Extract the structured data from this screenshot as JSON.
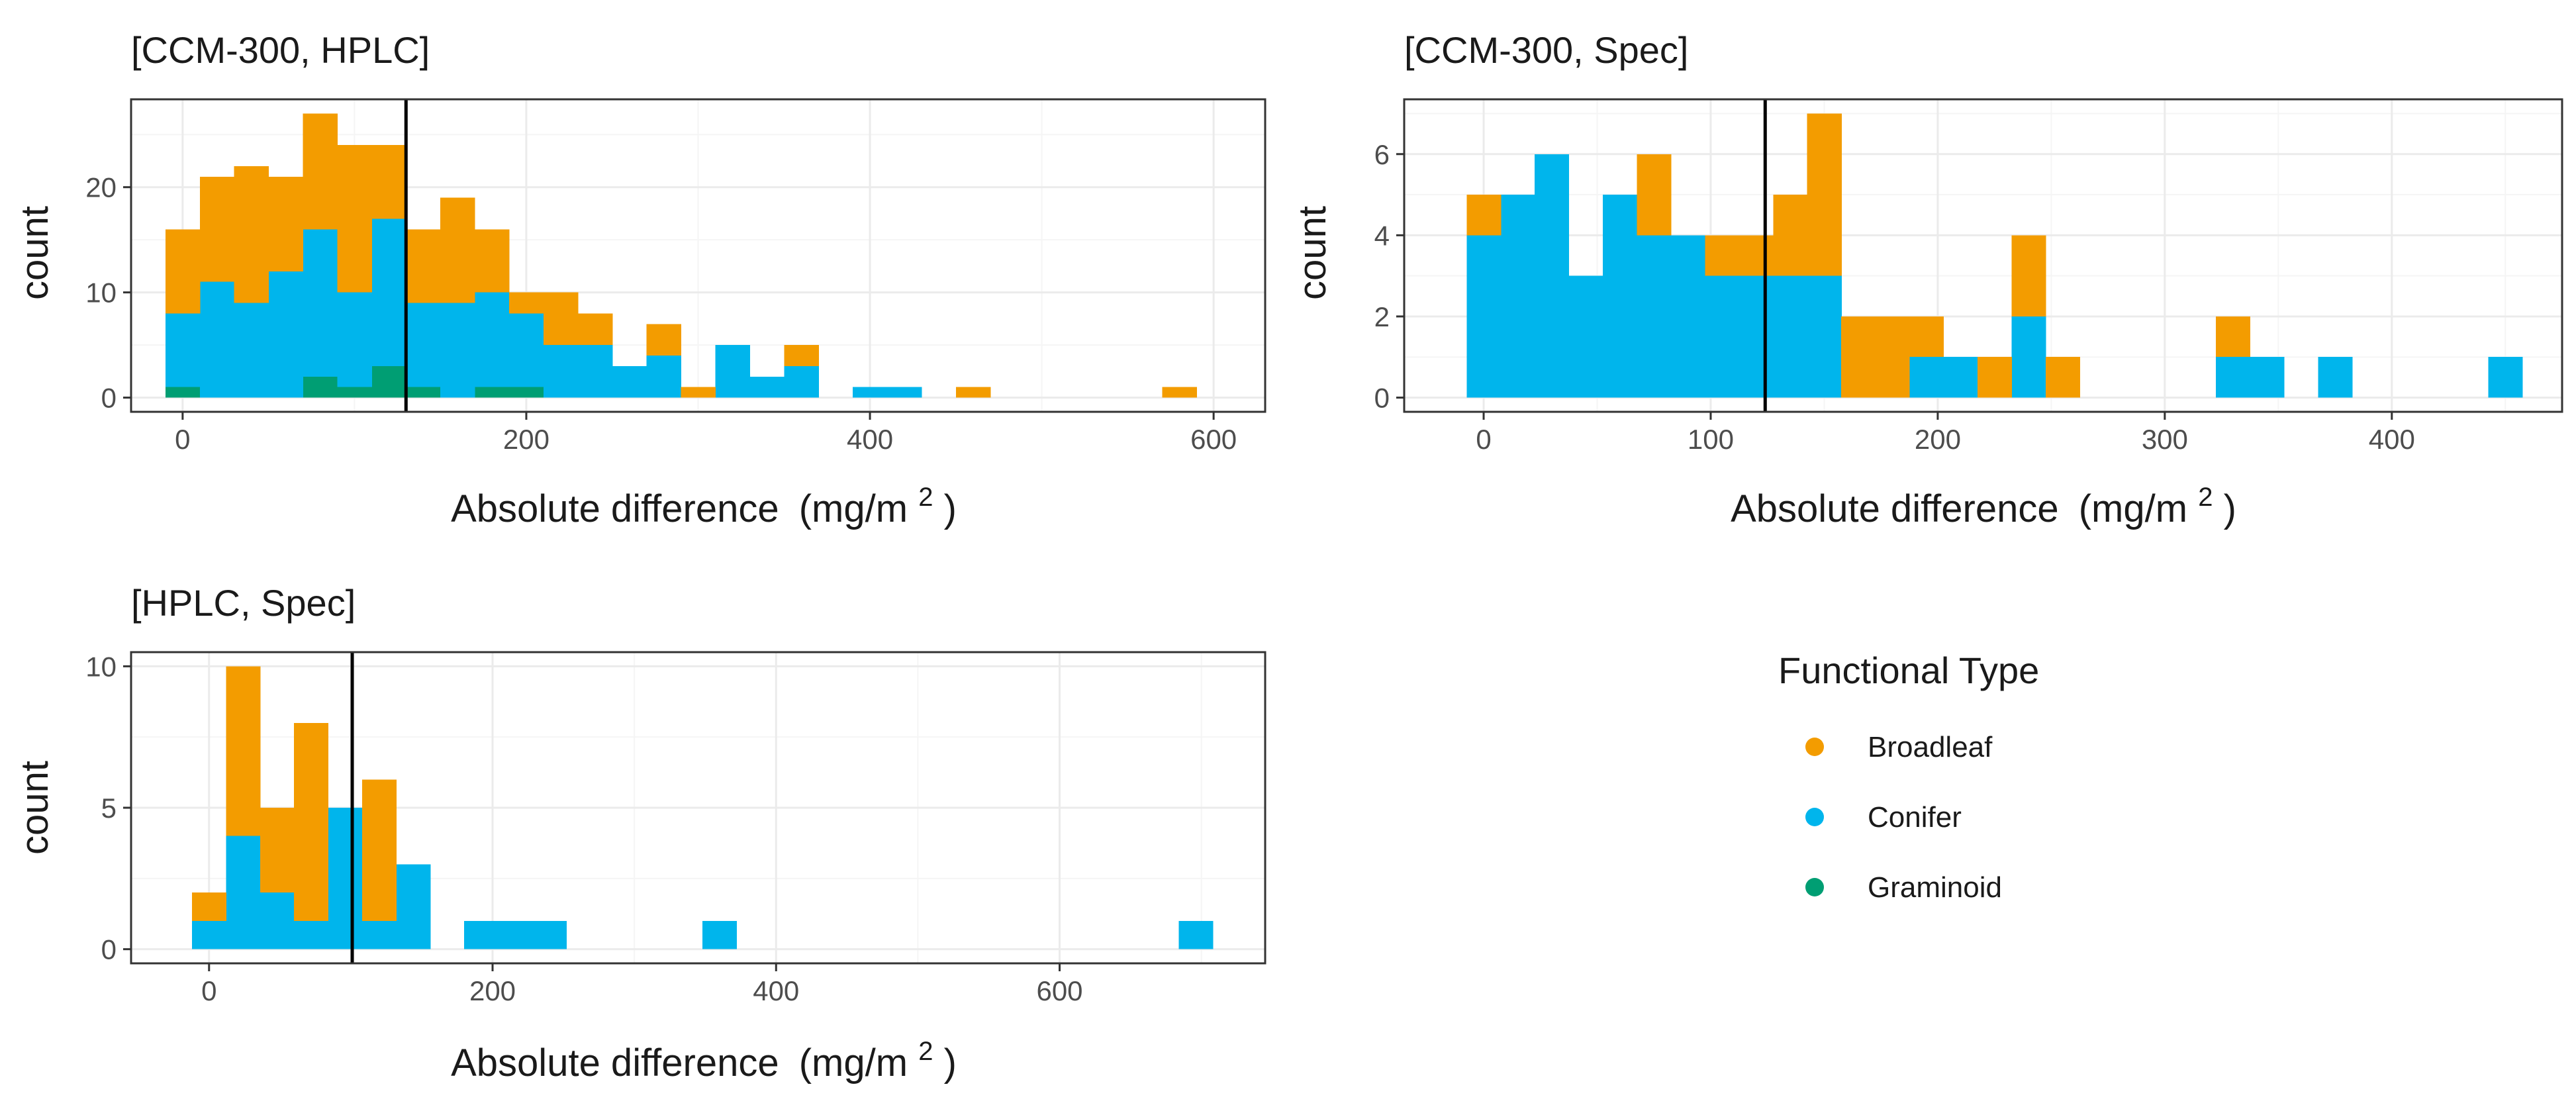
{
  "figure": {
    "legend_title": "Functional Type",
    "colors": {
      "Broadleaf": "#F39C00",
      "Conifer": "#00B5EC",
      "Graminoid": "#009E73"
    }
  },
  "chart_data": [
    {
      "type": "bar",
      "stacked": true,
      "title": "[CCM-300, HPLC]",
      "xlabel": "Absolute difference (mg/m²)",
      "xlabel_parts": {
        "main": "Absolute difference",
        "unit_open": "(mg/m",
        "superscript": "2",
        "unit_close": ")"
      },
      "ylabel": "count",
      "xlim": [
        -30,
        630
      ],
      "ylim": [
        -1.35,
        28.35
      ],
      "xticks": [
        0,
        200,
        400,
        600
      ],
      "xtick_labels": [
        "0",
        "200",
        "400",
        "600"
      ],
      "yticks": [
        0,
        10,
        20
      ],
      "ytick_labels": [
        "0",
        "10",
        "20"
      ],
      "bin_edges": [
        -10,
        10,
        30,
        50,
        70,
        90,
        110,
        130,
        150,
        170,
        190,
        210,
        230,
        250,
        270,
        290,
        310,
        330,
        350,
        370,
        390,
        410,
        430,
        450,
        470,
        490,
        510,
        530,
        550,
        570,
        590,
        610
      ],
      "series": [
        {
          "name": "Graminoid",
          "values": [
            1,
            0,
            0,
            0,
            2,
            1,
            3,
            1,
            0,
            1,
            1,
            0,
            0,
            0,
            0,
            0,
            0,
            0,
            0,
            0,
            0,
            0,
            0,
            0,
            0,
            0,
            0,
            0,
            0,
            0
          ]
        },
        {
          "name": "Conifer",
          "values": [
            7,
            11,
            9,
            12,
            14,
            9,
            14,
            8,
            9,
            9,
            7,
            5,
            5,
            3,
            4,
            0,
            5,
            2,
            3,
            0,
            1,
            1,
            0,
            0,
            0,
            0,
            0,
            0,
            0,
            0
          ]
        },
        {
          "name": "Broadleaf",
          "values": [
            8,
            10,
            13,
            9,
            11,
            14,
            7,
            7,
            10,
            6,
            2,
            5,
            3,
            0,
            3,
            1,
            0,
            0,
            2,
            0,
            0,
            0,
            0,
            1,
            0,
            0,
            0,
            0,
            0,
            1
          ]
        }
      ],
      "vline": 130
    },
    {
      "type": "bar",
      "stacked": true,
      "title": "[CCM-300, Spec]",
      "xlabel": "Absolute difference (mg/m²)",
      "xlabel_parts": {
        "main": "Absolute difference",
        "unit_open": "(mg/m",
        "superscript": "2",
        "unit_close": ")"
      },
      "ylabel": "count",
      "xlim": [
        -35,
        475
      ],
      "ylim": [
        -0.35,
        7.35
      ],
      "xticks": [
        0,
        100,
        200,
        300,
        400
      ],
      "xtick_labels": [
        "0",
        "100",
        "200",
        "300",
        "400"
      ],
      "yticks": [
        0,
        2,
        4,
        6
      ],
      "ytick_labels": [
        "0",
        "2",
        "4",
        "6"
      ],
      "bin_edges": [
        -7.5,
        7.5,
        22.5,
        37.5,
        52.5,
        67.5,
        82.5,
        97.5,
        112.5,
        127.5,
        142.5,
        157.5,
        172.5,
        187.5,
        202.5,
        217.5,
        232.5,
        247.5,
        262.5,
        277.5,
        292.5,
        307.5,
        322.5,
        337.5,
        352.5,
        367.5,
        382.5,
        397.5,
        412.5,
        427.5,
        442.5,
        457.5
      ],
      "series": [
        {
          "name": "Conifer",
          "values": [
            4,
            5,
            6,
            3,
            5,
            4,
            4,
            3,
            3,
            3,
            3,
            0,
            0,
            1,
            1,
            0,
            2,
            0,
            0,
            0,
            0,
            0,
            1,
            1,
            0,
            1,
            0,
            0,
            0,
            0,
            1
          ]
        },
        {
          "name": "Broadleaf",
          "values": [
            1,
            0,
            0,
            0,
            0,
            2,
            0,
            1,
            1,
            2,
            4,
            2,
            2,
            1,
            0,
            1,
            2,
            1,
            0,
            0,
            0,
            0,
            1,
            0,
            0,
            0,
            0,
            0,
            0,
            0,
            0
          ]
        }
      ],
      "vline": 124
    },
    {
      "type": "bar",
      "stacked": true,
      "title": "[HPLC, Spec]",
      "xlabel": "Absolute difference (mg/m²)",
      "xlabel_parts": {
        "main": "Absolute difference",
        "unit_open": "(mg/m",
        "superscript": "2",
        "unit_close": ")"
      },
      "ylabel": "count",
      "xlim": [
        -55,
        745
      ],
      "ylim": [
        -0.5,
        10.5
      ],
      "xticks": [
        0,
        200,
        400,
        600
      ],
      "xtick_labels": [
        "0",
        "200",
        "400",
        "600"
      ],
      "yticks": [
        0,
        5,
        10
      ],
      "ytick_labels": [
        "0",
        "5",
        "10"
      ],
      "bin_edges": [
        -12,
        12,
        36,
        60,
        84,
        108,
        132,
        156,
        180,
        204,
        228,
        252,
        276,
        300,
        324,
        348,
        372,
        396,
        420,
        444,
        468,
        492,
        516,
        540,
        564,
        588,
        612,
        636,
        660,
        684,
        708,
        732
      ],
      "series": [
        {
          "name": "Conifer",
          "values": [
            1,
            4,
            2,
            1,
            5,
            1,
            3,
            0,
            1,
            1,
            1,
            0,
            0,
            0,
            0,
            1,
            0,
            0,
            0,
            0,
            0,
            0,
            0,
            0,
            0,
            0,
            0,
            0,
            0,
            1
          ]
        },
        {
          "name": "Broadleaf",
          "values": [
            1,
            6,
            3,
            7,
            0,
            5,
            0,
            0,
            0,
            0,
            0,
            0,
            0,
            0,
            0,
            0,
            0,
            0,
            0,
            0,
            0,
            0,
            0,
            0,
            0,
            0,
            0,
            0,
            0,
            0
          ]
        }
      ],
      "vline": 101
    }
  ]
}
